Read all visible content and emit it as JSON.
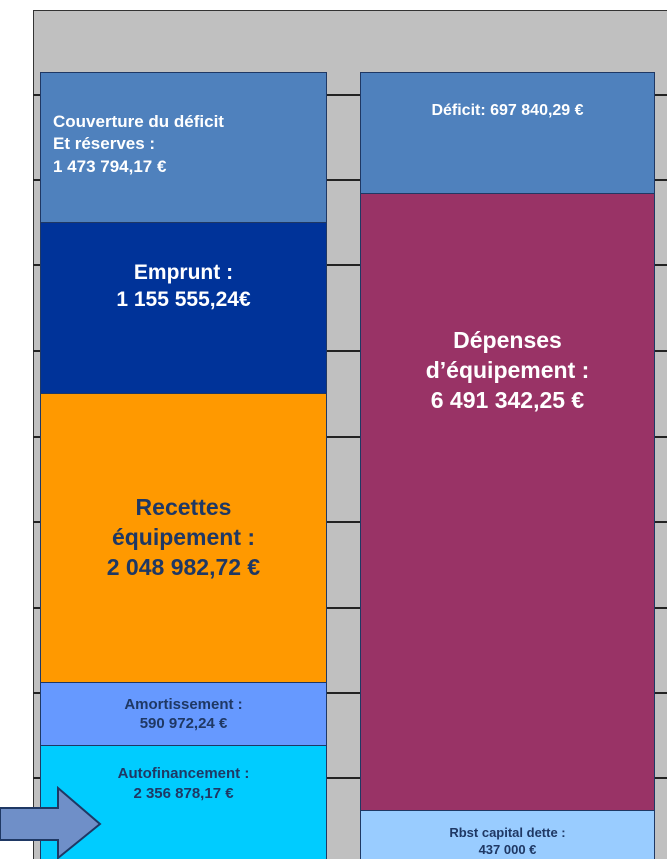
{
  "left": [
    {
      "lines": [
        "Couverture du déficit",
        "Et réserves :",
        "1 473 794,17 €"
      ]
    },
    {
      "lines": [
        "Emprunt :",
        "1 155 555,24€"
      ]
    },
    {
      "lines": [
        "Recettes",
        "équipement :",
        "2 048 982,72 €"
      ]
    },
    {
      "lines": [
        "Amortissement :",
        "590 972,24 €"
      ]
    },
    {
      "lines": [
        "Autofinancement :",
        "2 356 878,17 €"
      ]
    }
  ],
  "right": [
    {
      "lines": [
        "Déficit: 697 840,29 €"
      ]
    },
    {
      "lines": [
        "Dépenses",
        "d’équipement :",
        "6 491 342,25 €"
      ]
    },
    {
      "lines": [
        "Rbst capital dette :",
        "437 000 €"
      ]
    }
  ]
}
